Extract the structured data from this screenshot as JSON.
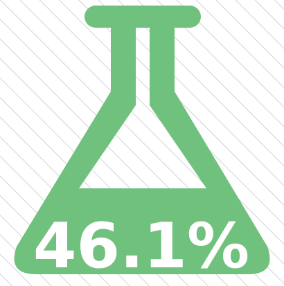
{
  "label": "46.1%"
}
